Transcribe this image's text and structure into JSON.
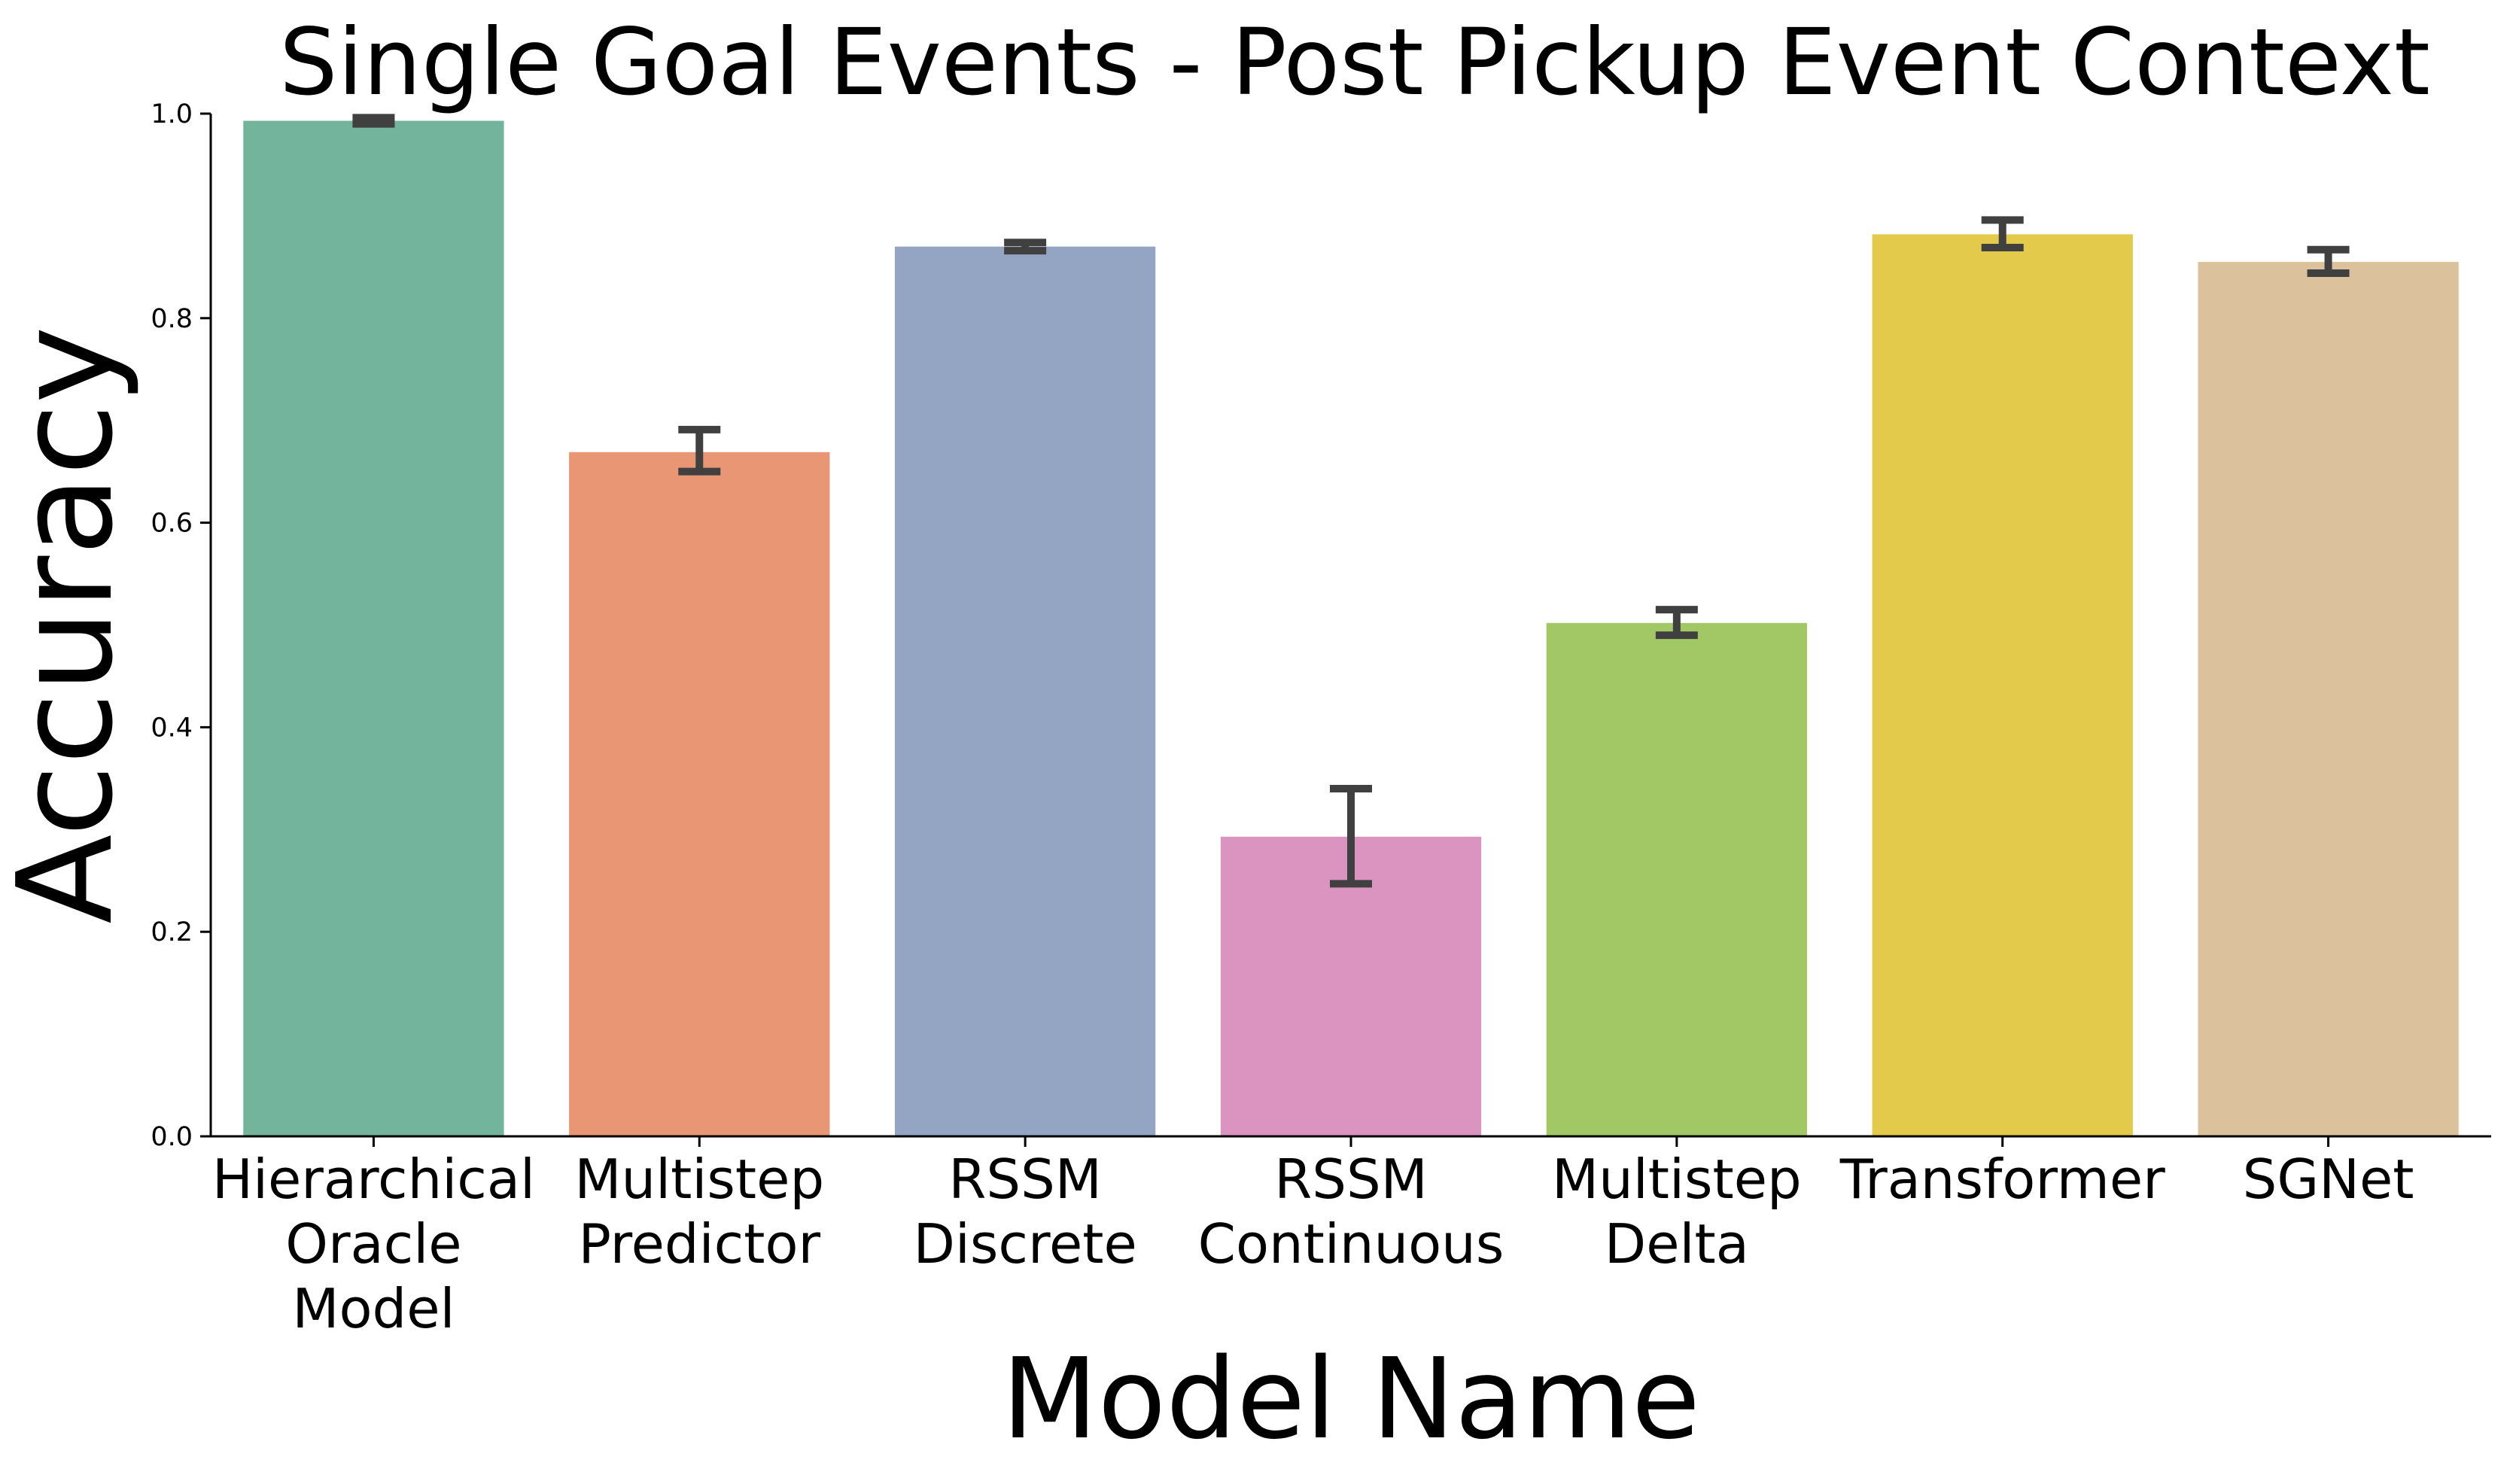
{
  "chart_data": {
    "type": "bar",
    "title": "Single Goal Events - Post Pickup Event Context",
    "xlabel": "Model Name",
    "ylabel": "Accuracy",
    "ylim": [
      0,
      1.0
    ],
    "yticks": [
      "0.0",
      "0.2",
      "0.4",
      "0.6",
      "0.8",
      "1.0"
    ],
    "grid": false,
    "categories": [
      [
        "Hierarchical",
        "Oracle",
        "Model"
      ],
      [
        "Multistep",
        "Predictor"
      ],
      [
        "RSSM",
        "Discrete"
      ],
      [
        "RSSM",
        "Continuous"
      ],
      [
        "Multistep",
        "Delta"
      ],
      [
        "Transformer"
      ],
      [
        "SGNet"
      ]
    ],
    "values": [
      0.993,
      0.669,
      0.87,
      0.293,
      0.502,
      0.882,
      0.855
    ],
    "error_low": [
      0.99,
      0.65,
      0.866,
      0.247,
      0.49,
      0.869,
      0.844
    ],
    "error_high": [
      0.996,
      0.691,
      0.874,
      0.34,
      0.515,
      0.896,
      0.867
    ],
    "colors": [
      "#73b49d",
      "#e99674",
      "#94a4c3",
      "#db94bf",
      "#a2c866",
      "#e3ca4a",
      "#dbc29d"
    ],
    "error_color": "#404040"
  }
}
